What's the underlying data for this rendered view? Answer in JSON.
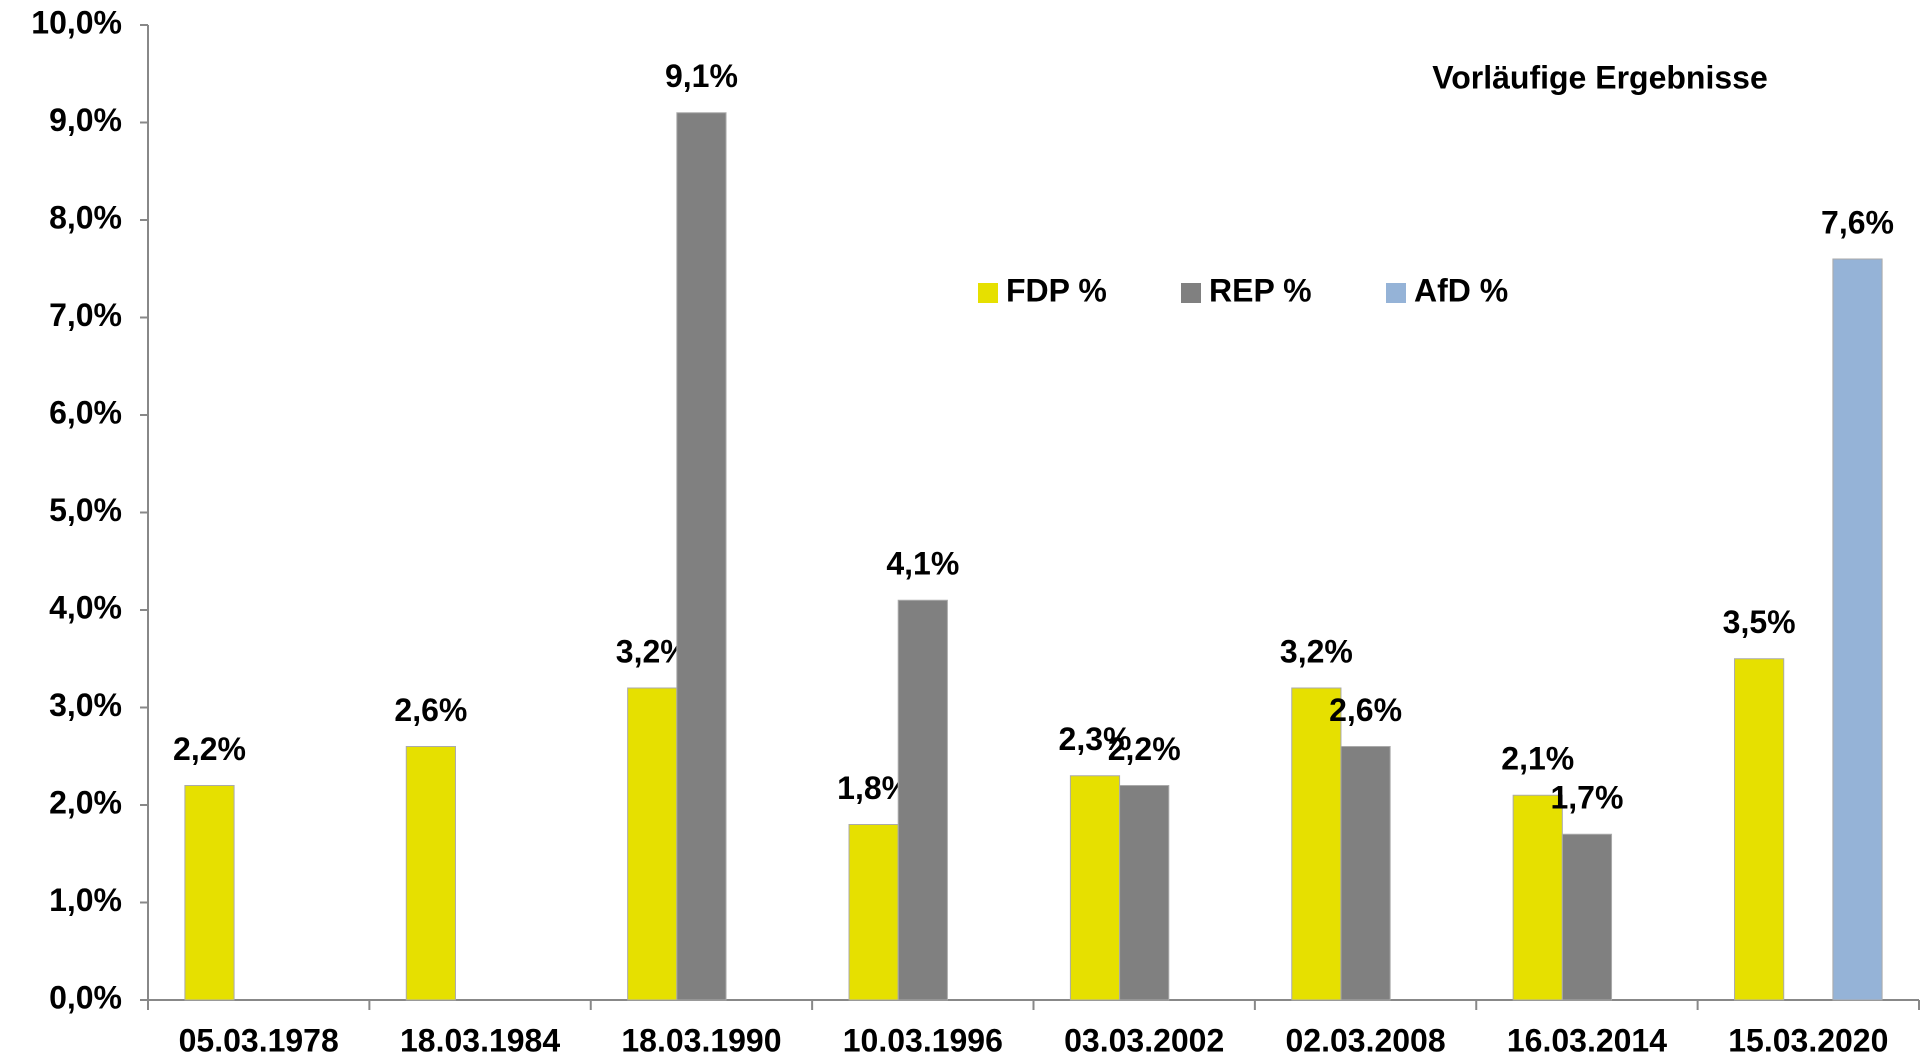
{
  "chart_data": {
    "type": "bar",
    "annotation": "Vorläufige Ergebnisse",
    "categories": [
      "05.03.1978",
      "18.03.1984",
      "18.03.1990",
      "10.03.1996",
      "03.03.2002",
      "02.03.2008",
      "16.03.2014",
      "15.03.2020"
    ],
    "series": [
      {
        "name": "FDP %",
        "color": "#e6e000",
        "values": [
          2.2,
          2.6,
          3.2,
          1.8,
          2.3,
          3.2,
          2.1,
          3.5
        ],
        "value_labels": [
          "2,2%",
          "2,6%",
          "3,2%",
          "1,8%",
          "2,3%",
          "3,2%",
          "2,1%",
          "3,5%"
        ]
      },
      {
        "name": "REP %",
        "color": "#808080",
        "values": [
          null,
          null,
          9.1,
          4.1,
          2.2,
          2.6,
          1.7,
          null
        ],
        "value_labels": [
          null,
          null,
          "9,1%",
          "4,1%",
          "2,2%",
          "2,6%",
          "1,7%",
          null
        ]
      },
      {
        "name": "AfD %",
        "color": "#95b3d7",
        "values": [
          null,
          null,
          null,
          null,
          null,
          null,
          null,
          7.6
        ],
        "value_labels": [
          null,
          null,
          null,
          null,
          null,
          null,
          null,
          "7,6%"
        ]
      }
    ],
    "ylim": [
      0,
      10
    ],
    "yticks": [
      {
        "value": 0,
        "label": "0,0%"
      },
      {
        "value": 1,
        "label": "1,0%"
      },
      {
        "value": 2,
        "label": "2,0%"
      },
      {
        "value": 3,
        "label": "3,0%"
      },
      {
        "value": 4,
        "label": "4,0%"
      },
      {
        "value": 5,
        "label": "5,0%"
      },
      {
        "value": 6,
        "label": "6,0%"
      },
      {
        "value": 7,
        "label": "7,0%"
      },
      {
        "value": 8,
        "label": "8,0%"
      },
      {
        "value": 9,
        "label": "9,0%"
      },
      {
        "value": 10,
        "label": "10,0%"
      }
    ],
    "legend": "top-center"
  }
}
